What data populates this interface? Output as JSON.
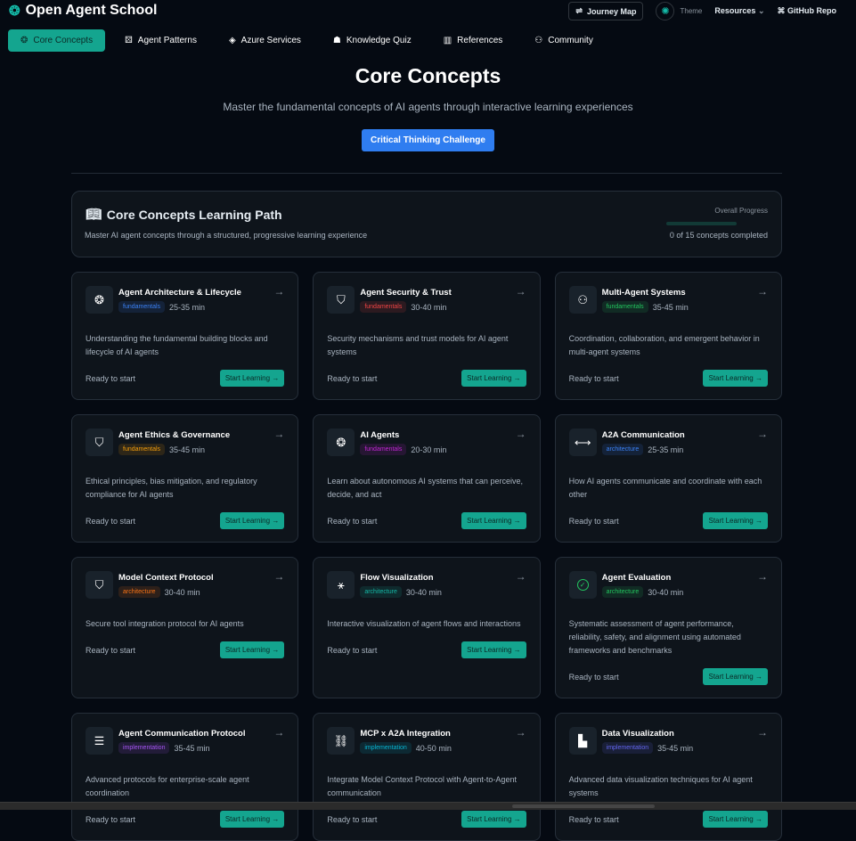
{
  "header": {
    "app_title": "Open Agent School",
    "journey_map": "Journey Map",
    "theme": "Theme",
    "resources": "Resources",
    "github": "GitHub Repo"
  },
  "nav": {
    "tabs": [
      {
        "label": "Core Concepts",
        "icon": "brain-icon",
        "active": true
      },
      {
        "label": "Agent Patterns",
        "icon": "puzzle-icon"
      },
      {
        "label": "Azure Services",
        "icon": "cloud-icon"
      },
      {
        "label": "Knowledge Quiz",
        "icon": "graduation-cap-icon"
      },
      {
        "label": "References",
        "icon": "books-icon"
      },
      {
        "label": "Community",
        "icon": "users-icon"
      }
    ]
  },
  "hero": {
    "title": "Core Concepts",
    "subtitle": "Master the fundamental concepts of AI agents through interactive learning experiences",
    "cta": "Critical Thinking Challenge"
  },
  "path": {
    "title": "Core Concepts Learning Path",
    "subtitle": "Master AI agent concepts through a structured, progressive learning experience",
    "progress_label": "Overall Progress",
    "progress_text": "0 of 15 concepts completed",
    "progress_fraction": 0
  },
  "card_common": {
    "status": "Ready to start",
    "button": "Start Learning"
  },
  "cards": [
    {
      "title": "Agent Architecture & Lifecycle",
      "badge": "fundamentals",
      "badge_color": "#3b82f6",
      "duration": "25-35 min",
      "description": "Understanding the fundamental building blocks and lifecycle of AI agents",
      "icon": "brain-icon"
    },
    {
      "title": "Agent Security & Trust",
      "badge": "fundamentals",
      "badge_color": "#ef4444",
      "duration": "30-40 min",
      "description": "Security mechanisms and trust models for AI agent systems",
      "icon": "shield-icon"
    },
    {
      "title": "Multi-Agent Systems",
      "badge": "fundamentals",
      "badge_color": "#22c55e",
      "duration": "35-45 min",
      "description": "Coordination, collaboration, and emergent behavior in multi-agent systems",
      "icon": "users-icon"
    },
    {
      "title": "Agent Ethics & Governance",
      "badge": "fundamentals",
      "badge_color": "#f59e0b",
      "duration": "35-45 min",
      "description": "Ethical principles, bias mitigation, and regulatory compliance for AI agents",
      "icon": "shield-icon"
    },
    {
      "title": "AI Agents",
      "badge": "fundamentals",
      "badge_color": "#c026d3",
      "duration": "20-30 min",
      "description": "Learn about autonomous AI systems that can perceive, decide, and act",
      "icon": "brain-icon"
    },
    {
      "title": "A2A Communication",
      "badge": "architecture",
      "badge_color": "#3b82f6",
      "duration": "25-35 min",
      "description": "How AI agents communicate and coordinate with each other",
      "icon": "arrows-horizontal-icon"
    },
    {
      "title": "Model Context Protocol",
      "badge": "architecture",
      "badge_color": "#f97316",
      "duration": "30-40 min",
      "description": "Secure tool integration protocol for AI agents",
      "icon": "shield-icon"
    },
    {
      "title": "Flow Visualization",
      "badge": "architecture",
      "badge_color": "#14b8a6",
      "duration": "30-40 min",
      "description": "Interactive visualization of agent flows and interactions",
      "icon": "graph-icon"
    },
    {
      "title": "Agent Evaluation",
      "badge": "architecture",
      "badge_color": "#22c55e",
      "duration": "30-40 min",
      "description": "Systematic assessment of agent performance, reliability, safety, and alignment using automated frameworks and benchmarks",
      "icon": "check-circle-icon"
    },
    {
      "title": "Agent Communication Protocol",
      "badge": "implementation",
      "badge_color": "#a855f7",
      "duration": "35-45 min",
      "description": "Advanced protocols for enterprise-scale agent coordination",
      "icon": "layers-icon"
    },
    {
      "title": "MCP x A2A Integration",
      "badge": "implementation",
      "badge_color": "#06b6d4",
      "duration": "40-50 min",
      "description": "Integrate Model Context Protocol with Agent-to-Agent communication",
      "icon": "link-icon"
    },
    {
      "title": "Data Visualization",
      "badge": "implementation",
      "badge_color": "#6366f1",
      "duration": "35-45 min",
      "description": "Advanced data visualization techniques for AI agent systems",
      "icon": "bar-chart-icon"
    }
  ]
}
